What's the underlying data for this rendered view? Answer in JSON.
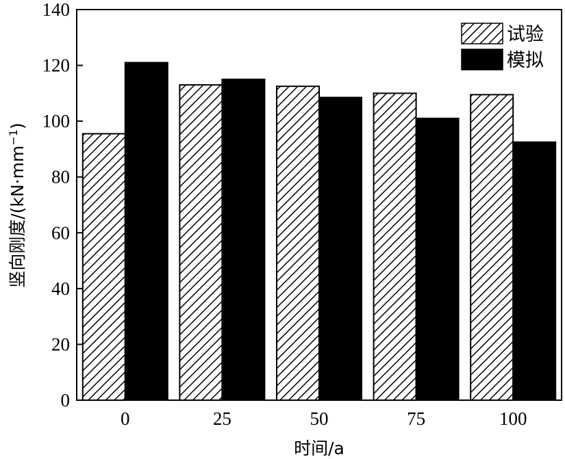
{
  "chart_data": {
    "type": "bar",
    "categories": [
      "0",
      "25",
      "50",
      "75",
      "100"
    ],
    "series": [
      {
        "name": "试验",
        "values": [
          95.5,
          113,
          112.5,
          110,
          109.5
        ],
        "pattern": "hatch"
      },
      {
        "name": "模拟",
        "values": [
          121,
          115,
          108.5,
          101,
          92.5
        ],
        "pattern": "solid",
        "color": "#000000"
      }
    ],
    "xlabel": "时间/a",
    "ylabel_prefix": "竖向刚度/(kN·mm",
    "ylabel_sup": "−1",
    "ylabel_suffix": ")",
    "ylim": [
      0,
      140
    ],
    "yticks": [
      0,
      20,
      40,
      60,
      80,
      100,
      120,
      140
    ],
    "grid": false,
    "legend_position": "top-right"
  }
}
